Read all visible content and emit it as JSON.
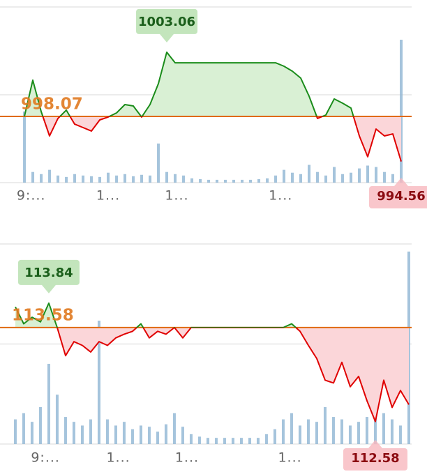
{
  "chart_data": [
    {
      "type": "line",
      "values": [
        998.07,
        1000.89,
        998.45,
        996.55,
        997.91,
        998.56,
        997.47,
        997.2,
        996.93,
        997.8,
        998.02,
        998.34,
        998.99,
        998.88,
        998.02,
        998.99,
        1000.62,
        1003.06,
        1002.24,
        1002.24,
        1002.24,
        1002.24,
        1002.24,
        1002.24,
        1002.24,
        1002.24,
        1002.24,
        1002.24,
        1002.24,
        1002.24,
        1002.24,
        1001.97,
        1001.59,
        1001.05,
        999.64,
        997.91,
        998.18,
        999.43,
        999.1,
        998.72,
        996.55,
        994.93,
        997.09,
        996.55,
        996.71,
        994.56
      ],
      "volumes": [
        100,
        15,
        12,
        18,
        10,
        8,
        12,
        10,
        9,
        8,
        14,
        10,
        12,
        9,
        11,
        10,
        55,
        15,
        12,
        10,
        6,
        5,
        4,
        4,
        4,
        4,
        4,
        4,
        5,
        6,
        10,
        18,
        14,
        12,
        25,
        15,
        10,
        22,
        12,
        14,
        20,
        24,
        22,
        15,
        12,
        201
      ],
      "baseline": 998.07,
      "high_label": 1003.06,
      "low_label": 994.56,
      "xlim": [
        -2.92,
        45
      ],
      "ylim": [
        992.92,
        1006.58
      ],
      "y2lim": [
        0,
        100
      ],
      "xticks": [
        {
          "value": 0.8,
          "label": "9:..."
        },
        {
          "value": 10,
          "label": "1..."
        },
        {
          "value": 18.2,
          "label": "1..."
        },
        {
          "value": 30.6,
          "label": "1..."
        }
      ],
      "color_above": "#1a8c1a",
      "color_below": "#e00000",
      "fill_above": "#d9f0d4",
      "fill_below": "#fbd6d9",
      "baseline_color": "#e06a10",
      "volume_color": "#8fb5d3",
      "grid": true
    },
    {
      "type": "line",
      "values": [
        113.8,
        113.62,
        113.69,
        113.64,
        113.84,
        113.58,
        113.28,
        113.43,
        113.39,
        113.32,
        113.43,
        113.39,
        113.47,
        113.51,
        113.54,
        113.62,
        113.47,
        113.54,
        113.51,
        113.58,
        113.47,
        113.58,
        113.58,
        113.58,
        113.58,
        113.58,
        113.58,
        113.58,
        113.58,
        113.58,
        113.58,
        113.58,
        113.58,
        113.62,
        113.54,
        113.39,
        113.25,
        113.02,
        112.99,
        113.21,
        112.95,
        113.06,
        112.8,
        112.58,
        113.02,
        112.73,
        112.91,
        112.76
      ],
      "volumes": [
        20,
        25,
        18,
        30,
        65,
        40,
        22,
        18,
        15,
        20,
        100,
        20,
        15,
        18,
        12,
        15,
        14,
        10,
        16,
        25,
        14,
        8,
        6,
        5,
        5,
        5,
        5,
        5,
        5,
        5,
        8,
        12,
        20,
        25,
        15,
        20,
        18,
        30,
        22,
        20,
        15,
        18,
        22,
        30,
        25,
        20,
        15,
        156
      ],
      "baseline": 113.58,
      "high_label": 113.84,
      "low_label": 112.58,
      "xlim": [
        -1.83,
        47.17
      ],
      "ylim": [
        112.34,
        114.47
      ],
      "y2lim": [
        0,
        100
      ],
      "xticks": [
        {
          "value": 3.6,
          "label": "9:..."
        },
        {
          "value": 12.3,
          "label": "1..."
        },
        {
          "value": 20.5,
          "label": "1..."
        },
        {
          "value": 32.8,
          "label": "1..."
        }
      ],
      "color_above": "#1a8c1a",
      "color_below": "#e00000",
      "fill_above": "#d9f0d4",
      "fill_below": "#fbd6d9",
      "baseline_color": "#e06a10",
      "volume_color": "#8fb5d3",
      "grid": true
    }
  ]
}
